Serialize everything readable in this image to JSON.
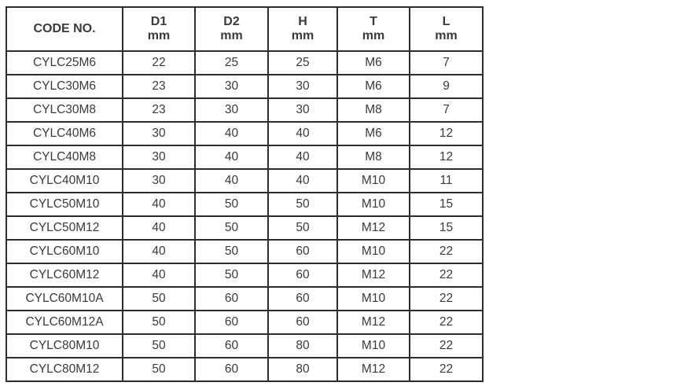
{
  "table": {
    "columns": [
      {
        "label": "CODE NO.",
        "unit": ""
      },
      {
        "label": "D1",
        "unit": "mm"
      },
      {
        "label": "D2",
        "unit": "mm"
      },
      {
        "label": "H",
        "unit": "mm"
      },
      {
        "label": "T",
        "unit": "mm"
      },
      {
        "label": "L",
        "unit": "mm"
      }
    ],
    "rows": [
      [
        "CYLC25M6",
        "22",
        "25",
        "25",
        "M6",
        "7"
      ],
      [
        "CYLC30M6",
        "23",
        "30",
        "30",
        "M6",
        "9"
      ],
      [
        "CYLC30M8",
        "23",
        "30",
        "30",
        "M8",
        "7"
      ],
      [
        "CYLC40M6",
        "30",
        "40",
        "40",
        "M6",
        "12"
      ],
      [
        "CYLC40M8",
        "30",
        "40",
        "40",
        "M8",
        "12"
      ],
      [
        "CYLC40M10",
        "30",
        "40",
        "40",
        "M10",
        "11"
      ],
      [
        "CYLC50M10",
        "40",
        "50",
        "50",
        "M10",
        "15"
      ],
      [
        "CYLC50M12",
        "40",
        "50",
        "50",
        "M12",
        "15"
      ],
      [
        "CYLC60M10",
        "40",
        "50",
        "60",
        "M10",
        "22"
      ],
      [
        "CYLC60M12",
        "40",
        "50",
        "60",
        "M12",
        "22"
      ],
      [
        "CYLC60M10A",
        "50",
        "60",
        "60",
        "M10",
        "22"
      ],
      [
        "CYLC60M12A",
        "50",
        "60",
        "60",
        "M12",
        "22"
      ],
      [
        "CYLC80M10",
        "50",
        "60",
        "80",
        "M10",
        "22"
      ],
      [
        "CYLC80M12",
        "50",
        "60",
        "80",
        "M12",
        "22"
      ]
    ]
  },
  "colors": {
    "border": "#2d2d2d",
    "text": "#3a3a3a",
    "background": "#ffffff"
  }
}
